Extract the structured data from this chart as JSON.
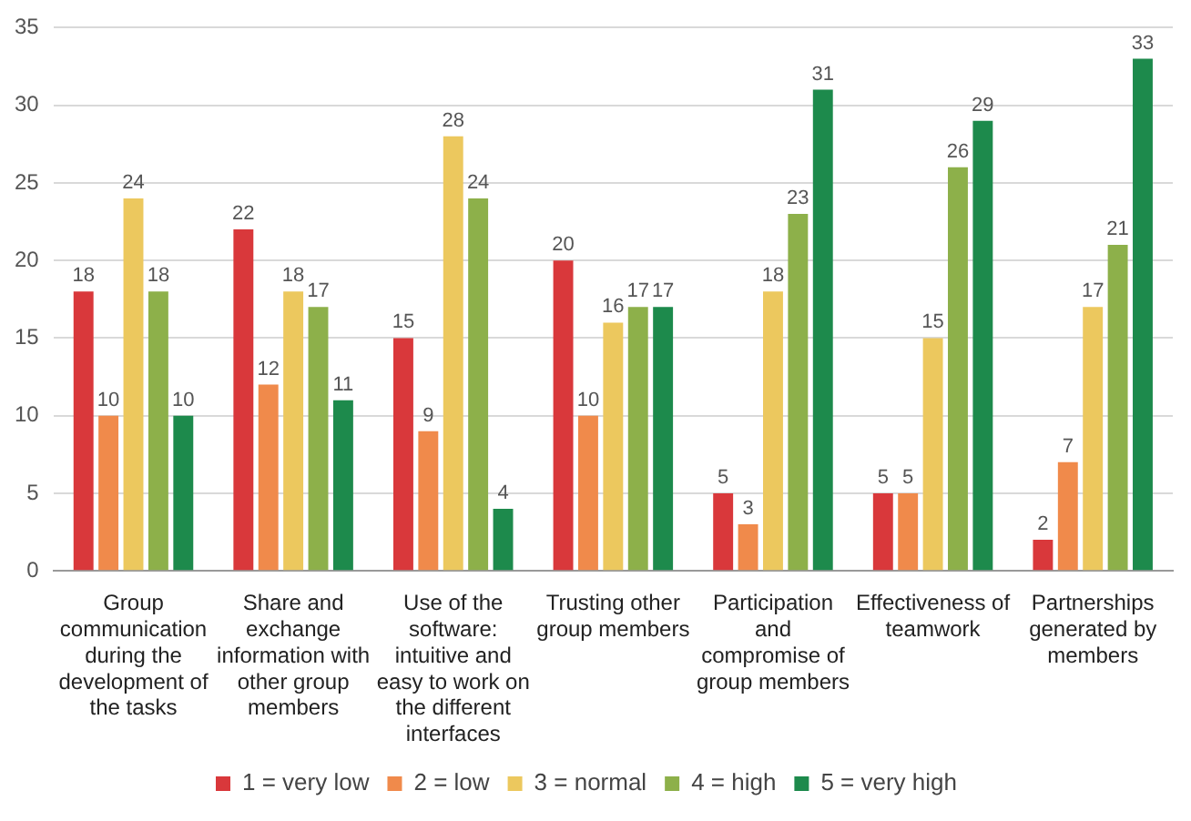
{
  "chart_data": {
    "type": "bar",
    "categories": [
      "Group communication during the development of the tasks",
      "Share and exchange information with other group members",
      "Use of the software: intuitive and easy to work on the different interfaces",
      "Trusting other group members",
      "Participation and compromise of group members",
      "Effectiveness of teamwork",
      "Partnerships generated by members"
    ],
    "series": [
      {
        "name": "1 = very low",
        "color": "#d9383b",
        "values": [
          18,
          22,
          15,
          20,
          5,
          5,
          2
        ]
      },
      {
        "name": "2 = low",
        "color": "#f08a4b",
        "values": [
          10,
          12,
          9,
          10,
          3,
          5,
          7
        ]
      },
      {
        "name": "3 = normal",
        "color": "#ecc85e",
        "values": [
          24,
          18,
          28,
          16,
          18,
          15,
          17
        ]
      },
      {
        "name": "4 = high",
        "color": "#8db04a",
        "values": [
          18,
          17,
          24,
          17,
          23,
          26,
          21
        ]
      },
      {
        "name": "5 = very high",
        "color": "#1d8a4c",
        "values": [
          10,
          11,
          4,
          17,
          31,
          29,
          33
        ]
      }
    ],
    "ylim": [
      0,
      35
    ],
    "yticks": [
      0,
      5,
      10,
      15,
      20,
      25,
      30,
      35
    ],
    "grid": "y",
    "legend": "bottom",
    "data_labels": true
  }
}
